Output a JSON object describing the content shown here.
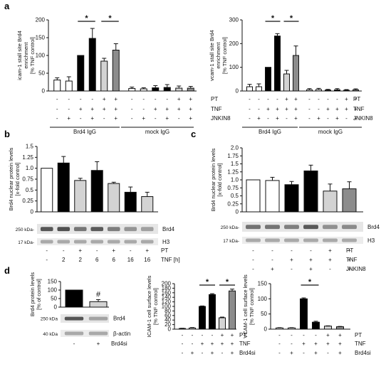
{
  "panel_letters": {
    "a": "a",
    "b": "b",
    "c": "c",
    "d": "d"
  },
  "chart_data": [
    {
      "id": "a1",
      "type": "bar",
      "ylabel": [
        "icam-1 stall site Brd4",
        "enrichment",
        "[% TNF control]"
      ],
      "ylim": [
        0,
        200
      ],
      "yticks": [
        0,
        50,
        100,
        150,
        200
      ],
      "values": [
        31,
        28,
        100,
        148,
        84,
        115,
        7,
        6,
        9,
        10,
        8,
        8
      ],
      "errors": [
        6,
        12,
        0,
        28,
        8,
        18,
        4,
        3,
        6,
        8,
        6,
        5
      ],
      "fills": [
        "#ffffff",
        "#ffffff",
        "#000000",
        "#000000",
        "#d3d3d3",
        "#8c8c8c",
        "#ffffff",
        "#ffffff",
        "#000000",
        "#000000",
        "#d3d3d3",
        "#8c8c8c"
      ],
      "rows": [
        {
          "label": "PT",
          "signs": [
            "-",
            "-",
            "-",
            "-",
            "+",
            "+",
            "-",
            "-",
            "-",
            "-",
            "+",
            "+"
          ]
        },
        {
          "label": "TNF",
          "signs": [
            "-",
            "-",
            "+",
            "+",
            "+",
            "+",
            "-",
            "-",
            "+",
            "+",
            "+",
            "+"
          ]
        },
        {
          "label": "JNKIN8",
          "signs": [
            "-",
            "+",
            "-",
            "+",
            "-",
            "+",
            "-",
            "+",
            "-",
            "+",
            "-",
            "+"
          ]
        }
      ],
      "groups": [
        "Brd4 IgG",
        "mock IgG"
      ],
      "sig": [
        "*",
        "*"
      ]
    },
    {
      "id": "a2",
      "type": "bar",
      "ylabel": [
        "vcam-1 stall site Brd4",
        "enrichment",
        "[% TNF control]"
      ],
      "ylim": [
        0,
        300
      ],
      "yticks": [
        0,
        100,
        200,
        300
      ],
      "values": [
        18,
        18,
        100,
        232,
        72,
        150,
        5,
        6,
        4,
        5,
        3,
        5
      ],
      "errors": [
        10,
        12,
        0,
        10,
        15,
        40,
        5,
        5,
        3,
        5,
        3,
        4
      ],
      "fills": [
        "#ffffff",
        "#ffffff",
        "#000000",
        "#000000",
        "#d3d3d3",
        "#8c8c8c",
        "#ffffff",
        "#ffffff",
        "#000000",
        "#000000",
        "#d3d3d3",
        "#8c8c8c"
      ],
      "rows": [
        {
          "label": "PT",
          "signs": [
            "-",
            "-",
            "-",
            "-",
            "+",
            "+",
            "-",
            "-",
            "-",
            "-",
            "+",
            "+"
          ]
        },
        {
          "label": "TNF",
          "signs": [
            "-",
            "-",
            "+",
            "+",
            "+",
            "+",
            "-",
            "-",
            "+",
            "+",
            "+",
            "+"
          ]
        },
        {
          "label": "JNKIN8",
          "signs": [
            "-",
            "+",
            "-",
            "+",
            "-",
            "+",
            "-",
            "+",
            "-",
            "+",
            "-",
            "+"
          ]
        }
      ],
      "groups": [
        "Brd4 IgG",
        "mock IgG"
      ],
      "sig": [
        "*",
        "*"
      ]
    },
    {
      "id": "b",
      "type": "bar",
      "ylabel": [
        "Brd4 nuclear protein levels",
        "[x-fold control]"
      ],
      "ylim": [
        0,
        1.5
      ],
      "yticks": [
        "0",
        "0.25",
        "0.5",
        "0.75",
        "1.0",
        "1.25",
        "1.5"
      ],
      "values": [
        1.0,
        1.12,
        0.72,
        0.95,
        0.65,
        0.45,
        0.35
      ],
      "errors": [
        0,
        0.15,
        0.05,
        0.2,
        0.03,
        0.12,
        0.1
      ],
      "fills": [
        "#ffffff",
        "#000000",
        "#d3d3d3",
        "#000000",
        "#d3d3d3",
        "#000000",
        "#d3d3d3"
      ],
      "blot": {
        "labels": [
          "Brd4",
          "H3"
        ],
        "markers": [
          "250 kDa-",
          "17 kDa-"
        ]
      },
      "rows": [
        {
          "label": "PT",
          "signs": [
            "-",
            "-",
            "+",
            "-",
            "+",
            "-",
            "+"
          ]
        },
        {
          "label": "TNF [h]",
          "signs": [
            "-",
            "2",
            "2",
            "6",
            "6",
            "16",
            "16"
          ]
        }
      ]
    },
    {
      "id": "c",
      "type": "bar",
      "ylabel": [
        "Brd4 nuclear protein levels",
        "[x-fold control]"
      ],
      "ylim": [
        0,
        2.0
      ],
      "yticks": [
        "0",
        "0.25",
        "0.5",
        "0.75",
        "1.0",
        "1.25",
        "1.5",
        "1.75",
        "2.0"
      ],
      "values": [
        1.0,
        0.98,
        0.85,
        1.28,
        0.65,
        0.72
      ],
      "errors": [
        0,
        0.1,
        0.1,
        0.18,
        0.22,
        0.22
      ],
      "fills": [
        "#ffffff",
        "#ffffff",
        "#000000",
        "#000000",
        "#d3d3d3",
        "#8c8c8c"
      ],
      "blot": {
        "labels": [
          "Brd4",
          "H3"
        ],
        "markers": [
          "250 kDa-",
          "17 kDa-"
        ]
      },
      "rows": [
        {
          "label": "PT",
          "signs": [
            "-",
            "-",
            "-",
            "-",
            "+",
            "+"
          ]
        },
        {
          "label": "TNF",
          "signs": [
            "-",
            "-",
            "+",
            "+",
            "+",
            "+"
          ]
        },
        {
          "label": "JNKIN8",
          "signs": [
            "-",
            "+",
            "-",
            "+",
            "-",
            "+"
          ]
        }
      ]
    },
    {
      "id": "d1",
      "type": "bar",
      "ylabel": [
        "Brd4 protein levels",
        "[% of control]"
      ],
      "ylim": [
        0,
        150
      ],
      "yticks": [
        0,
        50,
        100,
        150
      ],
      "values": [
        100,
        32
      ],
      "errors": [
        0,
        12
      ],
      "fills": [
        "#000000",
        "#d3d3d3"
      ],
      "sig_marks": [
        "",
        "#"
      ],
      "blot": {
        "labels": [
          "Brd4",
          "β-actin"
        ],
        "markers": [
          "250 kDa",
          "40 kDa"
        ]
      },
      "rows": [
        {
          "label": "Brd4si",
          "signs": [
            "-",
            "+"
          ]
        }
      ]
    },
    {
      "id": "d2",
      "type": "bar",
      "ylabel": [
        "ICAM-1 cell surface levels",
        "[% TNF control]"
      ],
      "ylim": [
        0,
        200
      ],
      "yticks": [
        0,
        20,
        40,
        60,
        80,
        100,
        120,
        140,
        160,
        180,
        200
      ],
      "values": [
        3,
        5,
        100,
        152,
        50,
        168
      ],
      "errors": [
        1,
        2,
        2,
        4,
        3,
        8
      ],
      "fills": [
        "#ffffff",
        "#ffffff",
        "#000000",
        "#000000",
        "#d3d3d3",
        "#8c8c8c"
      ],
      "rows": [
        {
          "label": "PT",
          "signs": [
            "-",
            "-",
            "-",
            "-",
            "+",
            "+"
          ]
        },
        {
          "label": "TNF",
          "signs": [
            "-",
            "-",
            "+",
            "+",
            "+",
            "+"
          ]
        },
        {
          "label": "Brd4si",
          "signs": [
            "-",
            "+",
            "-",
            "+",
            "-",
            "+"
          ]
        }
      ],
      "sig": [
        "*",
        "*"
      ]
    },
    {
      "id": "d3",
      "type": "bar",
      "ylabel": [
        "VCAM-1 cell surface levels",
        "[% TNF control]"
      ],
      "ylim": [
        0,
        150
      ],
      "yticks": [
        0,
        50,
        100,
        150
      ],
      "values": [
        4,
        4,
        100,
        23,
        10,
        8
      ],
      "errors": [
        1,
        1,
        3,
        3,
        1,
        1
      ],
      "fills": [
        "#ffffff",
        "#ffffff",
        "#000000",
        "#000000",
        "#d3d3d3",
        "#8c8c8c"
      ],
      "rows": [
        {
          "label": "PT",
          "signs": [
            "-",
            "-",
            "-",
            "-",
            "+",
            "+"
          ]
        },
        {
          "label": "TNF",
          "signs": [
            "-",
            "-",
            "+",
            "+",
            "+",
            "+"
          ]
        },
        {
          "label": "Brd4si",
          "signs": [
            "-",
            "+",
            "-",
            "+",
            "-",
            "+"
          ]
        }
      ],
      "sig": [
        "*"
      ]
    }
  ]
}
